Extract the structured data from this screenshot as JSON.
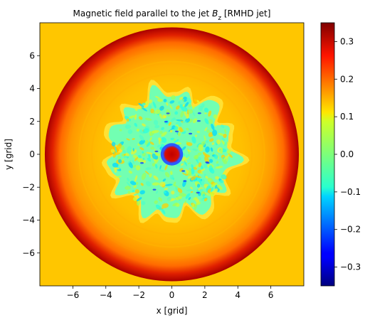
{
  "chart_data": {
    "type": "heatmap",
    "title_main": "Magnetic field parallel to the jet ",
    "title_symbol": "B",
    "title_subscript": "z",
    "title_suffix": " [RMHD jet]",
    "xlabel": "x [grid]",
    "ylabel": "y [grid]",
    "xlim": [
      -8,
      8
    ],
    "ylim": [
      -8,
      8
    ],
    "xticks": [
      -6,
      -4,
      -2,
      0,
      2,
      4,
      6
    ],
    "yticks": [
      -6,
      -4,
      -2,
      0,
      2,
      4,
      6
    ],
    "colorbar": {
      "colormap": "jet",
      "range": [
        -0.35,
        0.35
      ],
      "ticks": [
        -0.3,
        -0.2,
        -0.1,
        0.0,
        0.1,
        0.2,
        0.3
      ],
      "tick_labels": [
        "−0.3",
        "−0.2",
        "−0.1",
        "0.0",
        "0.1",
        "0.2",
        "0.3"
      ]
    },
    "field_structure": {
      "background_value": 0.13,
      "outer_ring_radius": 7.7,
      "outer_ring_peak_value": 0.33,
      "turbulent_core_radius": 4.6,
      "turbulent_core_value": -0.02,
      "central_spot_radius": 0.55,
      "central_spot_value": 0.32
    },
    "colors": {
      "background": "#ffc600",
      "ring_inner": "#ff8a00",
      "ring_outer": "#a80000",
      "core": "#72ffb2"
    }
  }
}
